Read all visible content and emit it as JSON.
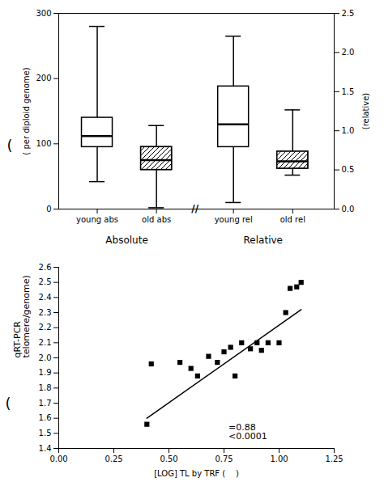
{
  "chart_data": [
    {
      "type": "box",
      "categories": [
        "young abs",
        "old abs",
        "young rel",
        "old rel"
      ],
      "whisker_hi": [
        280,
        128,
        265,
        152
      ],
      "q3": [
        140,
        95,
        188,
        88
      ],
      "median": [
        112,
        75,
        130,
        73
      ],
      "q1": [
        95,
        60,
        95,
        62
      ],
      "whisker_lo": [
        42,
        2,
        10,
        52
      ],
      "color": "black",
      "ylabel": "( per diploid genome)",
      "y2label": "(relative)",
      "ylim": [
        0,
        300
      ],
      "yticks": [
        0,
        100,
        200,
        300
      ],
      "y2lim": [
        0.0,
        2.5
      ],
      "y2ticks": [
        {
          "value": 0,
          "label": "0.0"
        },
        0.5,
        {
          "value": 1,
          "label": "1.0"
        },
        1.5,
        {
          "value": 2,
          "label": "2.0"
        },
        2.5
      ],
      "groups": [
        {
          "label": "Absolute",
          "categories": [
            "young abs",
            "old abs"
          ]
        },
        {
          "label": "Relative",
          "categories": [
            "young rel",
            "old rel"
          ]
        }
      ],
      "annotations": [
        {
          "text": "//"
        },
        {
          "text": "("
        }
      ]
    },
    {
      "type": "scatter",
      "xlabel": "[LOG] TL by TRF (    )",
      "ylabel": "qRT-PCR\ntelomere/genome)",
      "xlim": [
        0.0,
        1.25
      ],
      "ylim": [
        1.4,
        2.6
      ],
      "xticks": [
        {
          "value": 0,
          "label": "0.00"
        },
        0.25,
        {
          "value": 0.5,
          "label": "0.50"
        },
        0.75,
        {
          "value": 1,
          "label": "1.00"
        },
        1.25
      ],
      "yticks": [
        1.4,
        1.5,
        1.6,
        1.7,
        1.8,
        1.9,
        {
          "value": 2,
          "label": "2.0"
        },
        2.1,
        2.2,
        2.3,
        2.4,
        2.5,
        2.6
      ],
      "series": [
        {
          "type": "scatter",
          "marker": "square",
          "color": "black",
          "x": [
            0.4,
            0.42,
            0.55,
            0.6,
            0.63,
            0.68,
            0.72,
            0.75,
            0.78,
            0.8,
            0.83,
            0.87,
            0.9,
            0.92,
            0.95,
            1.0,
            1.03,
            1.05,
            1.08,
            1.1
          ],
          "values": [
            1.56,
            1.96,
            1.97,
            1.93,
            1.88,
            2.01,
            1.97,
            2.04,
            2.07,
            1.88,
            2.1,
            2.06,
            2.1,
            2.05,
            2.1,
            2.1,
            2.3,
            2.46,
            2.47,
            2.5
          ]
        },
        {
          "type": "line",
          "color": "black",
          "x": [
            0.4,
            1.1
          ],
          "values": [
            1.6,
            2.32
          ]
        }
      ],
      "annotations": [
        {
          "text": "=0.88\n<0.0001",
          "x": 0.77,
          "y": 1.56
        },
        {
          "text": "("
        }
      ]
    }
  ]
}
